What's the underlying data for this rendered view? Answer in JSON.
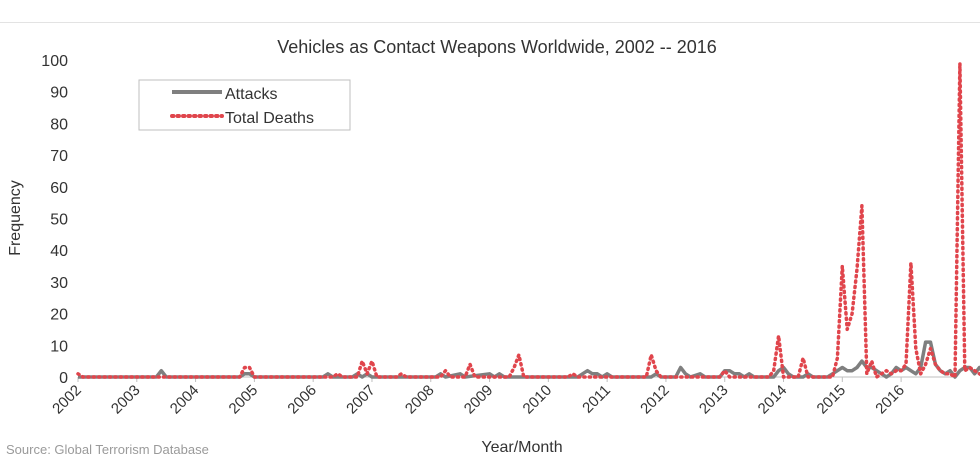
{
  "source_note": "Source: Global Terrorism Database",
  "colors": {
    "attacks": "#7f7f7f",
    "deaths": "#e0454c",
    "axis": "#bfbfbf",
    "text": "#333333"
  },
  "chart_data": {
    "type": "line",
    "title": "Vehicles as Contact Weapons Worldwide, 2002 -- 2016",
    "xlabel": "Year/Month",
    "ylabel": "Frequency",
    "ylim": [
      0,
      100
    ],
    "yticks": [
      0,
      10,
      20,
      30,
      40,
      50,
      60,
      70,
      80,
      90,
      100
    ],
    "x_start": "2002-01",
    "x_end": "2016-12",
    "x_tick_labels": [
      "2002",
      "2003",
      "2004",
      "2005",
      "2006",
      "2007",
      "2008",
      "2009",
      "2010",
      "2011",
      "2012",
      "2013",
      "2014",
      "2015",
      "2016"
    ],
    "grid": false,
    "legend_position": "top-left",
    "series": [
      {
        "name": "Attacks",
        "style": "solid",
        "points": [
          [
            "2002-01",
            0
          ],
          [
            "2003-05",
            0
          ],
          [
            "2003-06",
            2
          ],
          [
            "2003-07",
            0
          ],
          [
            "2004-10",
            0
          ],
          [
            "2004-11",
            1
          ],
          [
            "2004-12",
            1
          ],
          [
            "2005-01",
            0
          ],
          [
            "2006-03",
            0
          ],
          [
            "2006-04",
            1
          ],
          [
            "2006-05",
            0
          ],
          [
            "2006-09",
            0
          ],
          [
            "2006-10",
            1
          ],
          [
            "2006-11",
            0
          ],
          [
            "2006-12",
            1
          ],
          [
            "2007-01",
            0
          ],
          [
            "2008-02",
            0
          ],
          [
            "2008-03",
            1
          ],
          [
            "2008-04",
            0
          ],
          [
            "2008-07",
            1
          ],
          [
            "2008-08",
            0
          ],
          [
            "2009-01",
            1
          ],
          [
            "2009-02",
            0
          ],
          [
            "2009-03",
            1
          ],
          [
            "2009-04",
            0
          ],
          [
            "2010-07",
            0
          ],
          [
            "2010-08",
            1
          ],
          [
            "2010-09",
            2
          ],
          [
            "2010-10",
            1
          ],
          [
            "2010-11",
            1
          ],
          [
            "2010-12",
            0
          ],
          [
            "2011-01",
            1
          ],
          [
            "2011-02",
            0
          ],
          [
            "2011-10",
            0
          ],
          [
            "2011-11",
            1
          ],
          [
            "2011-12",
            0
          ],
          [
            "2012-03",
            0
          ],
          [
            "2012-04",
            3
          ],
          [
            "2012-05",
            1
          ],
          [
            "2012-06",
            0
          ],
          [
            "2012-08",
            1
          ],
          [
            "2012-09",
            0
          ],
          [
            "2012-12",
            0
          ],
          [
            "2013-01",
            2
          ],
          [
            "2013-02",
            2
          ],
          [
            "2013-03",
            1
          ],
          [
            "2013-04",
            1
          ],
          [
            "2013-05",
            0
          ],
          [
            "2013-06",
            1
          ],
          [
            "2013-07",
            0
          ],
          [
            "2013-11",
            0
          ],
          [
            "2013-12",
            2
          ],
          [
            "2014-01",
            3
          ],
          [
            "2014-02",
            1
          ],
          [
            "2014-03",
            0
          ],
          [
            "2014-05",
            0
          ],
          [
            "2014-06",
            1
          ],
          [
            "2014-07",
            0
          ],
          [
            "2014-10",
            0
          ],
          [
            "2014-11",
            1
          ],
          [
            "2014-12",
            2
          ],
          [
            "2015-01",
            3
          ],
          [
            "2015-02",
            2
          ],
          [
            "2015-03",
            2
          ],
          [
            "2015-04",
            3
          ],
          [
            "2015-05",
            5
          ],
          [
            "2015-06",
            3
          ],
          [
            "2015-07",
            3
          ],
          [
            "2015-08",
            2
          ],
          [
            "2015-09",
            1
          ],
          [
            "2015-10",
            0
          ],
          [
            "2015-11",
            1
          ],
          [
            "2015-12",
            3
          ],
          [
            "2016-01",
            2
          ],
          [
            "2016-02",
            3
          ],
          [
            "2016-03",
            2
          ],
          [
            "2016-04",
            1
          ],
          [
            "2016-05",
            3
          ],
          [
            "2016-06",
            11
          ],
          [
            "2016-07",
            11
          ],
          [
            "2016-08",
            4
          ],
          [
            "2016-09",
            2
          ],
          [
            "2016-10",
            1
          ],
          [
            "2016-11",
            2
          ],
          [
            "2016-12",
            0
          ],
          [
            "2017-01",
            2
          ],
          [
            "2017-02",
            3
          ],
          [
            "2017-03",
            3
          ],
          [
            "2017-04",
            1
          ],
          [
            "2017-05",
            3
          ],
          [
            "2017-06",
            1
          ],
          [
            "2017-07",
            4
          ]
        ]
      },
      {
        "name": "Total Deaths",
        "style": "dotted",
        "points": [
          [
            "2002-01",
            1
          ],
          [
            "2002-02",
            0
          ],
          [
            "2004-10",
            0
          ],
          [
            "2004-11",
            3
          ],
          [
            "2004-12",
            3
          ],
          [
            "2005-01",
            0
          ],
          [
            "2006-05",
            0
          ],
          [
            "2006-06",
            1
          ],
          [
            "2006-07",
            0
          ],
          [
            "2006-10",
            0
          ],
          [
            "2006-11",
            5
          ],
          [
            "2006-12",
            1
          ],
          [
            "2007-01",
            5
          ],
          [
            "2007-02",
            0
          ],
          [
            "2007-06",
            0
          ],
          [
            "2007-07",
            1
          ],
          [
            "2007-08",
            0
          ],
          [
            "2008-03",
            0
          ],
          [
            "2008-04",
            2
          ],
          [
            "2008-05",
            0
          ],
          [
            "2008-08",
            0
          ],
          [
            "2008-09",
            4
          ],
          [
            "2008-10",
            0
          ],
          [
            "2009-05",
            0
          ],
          [
            "2009-06",
            3
          ],
          [
            "2009-07",
            7
          ],
          [
            "2009-08",
            0
          ],
          [
            "2010-05",
            0
          ],
          [
            "2010-06",
            1
          ],
          [
            "2010-07",
            0
          ],
          [
            "2011-09",
            0
          ],
          [
            "2011-10",
            7
          ],
          [
            "2011-11",
            2
          ],
          [
            "2011-12",
            0
          ],
          [
            "2012-12",
            0
          ],
          [
            "2013-01",
            2
          ],
          [
            "2013-02",
            0
          ],
          [
            "2013-10",
            0
          ],
          [
            "2013-11",
            2
          ],
          [
            "2013-12",
            13
          ],
          [
            "2014-01",
            0
          ],
          [
            "2014-04",
            0
          ],
          [
            "2014-05",
            6
          ],
          [
            "2014-06",
            0
          ],
          [
            "2014-11",
            0
          ],
          [
            "2014-12",
            6
          ],
          [
            "2015-01",
            35
          ],
          [
            "2015-02",
            15
          ],
          [
            "2015-03",
            20
          ],
          [
            "2015-04",
            34
          ],
          [
            "2015-05",
            54
          ],
          [
            "2015-06",
            1
          ],
          [
            "2015-07",
            5
          ],
          [
            "2015-08",
            0
          ],
          [
            "2015-09",
            1
          ],
          [
            "2015-10",
            2
          ],
          [
            "2015-11",
            1
          ],
          [
            "2015-12",
            2
          ],
          [
            "2016-01",
            2
          ],
          [
            "2016-02",
            4
          ],
          [
            "2016-03",
            36
          ],
          [
            "2016-04",
            9
          ],
          [
            "2016-05",
            1
          ],
          [
            "2016-06",
            4
          ],
          [
            "2016-07",
            9
          ],
          [
            "2016-08",
            4
          ],
          [
            "2016-09",
            2
          ],
          [
            "2016-10",
            1
          ],
          [
            "2016-11",
            1
          ],
          [
            "2016-12",
            0
          ],
          [
            "2017-01",
            99
          ],
          [
            "2017-02",
            2
          ],
          [
            "2017-03",
            3
          ],
          [
            "2017-04",
            2
          ],
          [
            "2017-05",
            1
          ],
          [
            "2017-06",
            0
          ],
          [
            "2017-07",
            15
          ]
        ]
      }
    ]
  }
}
